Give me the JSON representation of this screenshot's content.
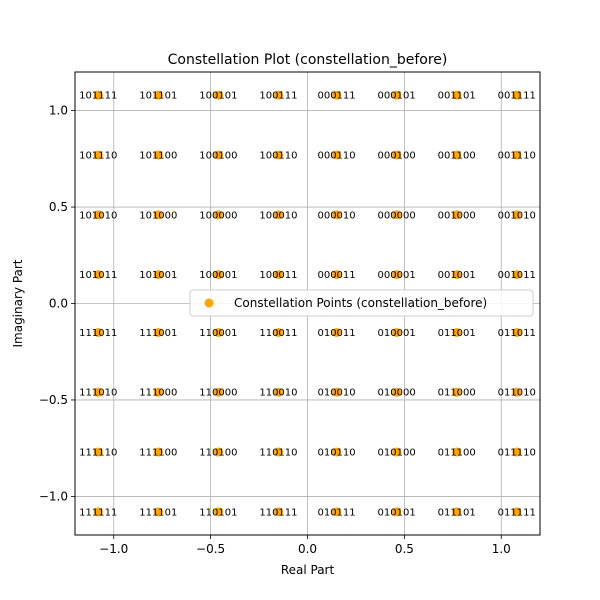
{
  "chart_data": {
    "type": "scatter",
    "title": "Constellation Plot (constellation_before)",
    "xlabel": "Real Part",
    "ylabel": "Imaginary Part",
    "xlim": [
      -1.2,
      1.2
    ],
    "ylim": [
      -1.2,
      1.2
    ],
    "xticks": [
      -1.0,
      -0.5,
      0.0,
      0.5,
      1.0
    ],
    "xtick_labels": [
      "−1.0",
      "−0.5",
      "0.0",
      "0.5",
      "1.0"
    ],
    "yticks": [
      -1.0,
      -0.5,
      0.0,
      0.5,
      1.0
    ],
    "ytick_labels": [
      "−1.0",
      "−0.5",
      "0.0",
      "0.5",
      "1.0"
    ],
    "grid": true,
    "legend_position": "center-right",
    "marker_color": "#ffa500",
    "series": [
      {
        "name": "Constellation Points (constellation_before)",
        "points": [
          {
            "x": -1.08,
            "y": 1.08,
            "label": "101111"
          },
          {
            "x": -0.77,
            "y": 1.08,
            "label": "101101"
          },
          {
            "x": -0.46,
            "y": 1.08,
            "label": "100101"
          },
          {
            "x": -0.15,
            "y": 1.08,
            "label": "100111"
          },
          {
            "x": 0.15,
            "y": 1.08,
            "label": "000111"
          },
          {
            "x": 0.46,
            "y": 1.08,
            "label": "000101"
          },
          {
            "x": 0.77,
            "y": 1.08,
            "label": "001101"
          },
          {
            "x": 1.08,
            "y": 1.08,
            "label": "001111"
          },
          {
            "x": -1.08,
            "y": 0.77,
            "label": "101110"
          },
          {
            "x": -0.77,
            "y": 0.77,
            "label": "101100"
          },
          {
            "x": -0.46,
            "y": 0.77,
            "label": "100100"
          },
          {
            "x": -0.15,
            "y": 0.77,
            "label": "100110"
          },
          {
            "x": 0.15,
            "y": 0.77,
            "label": "000110"
          },
          {
            "x": 0.46,
            "y": 0.77,
            "label": "000100"
          },
          {
            "x": 0.77,
            "y": 0.77,
            "label": "001100"
          },
          {
            "x": 1.08,
            "y": 0.77,
            "label": "001110"
          },
          {
            "x": -1.08,
            "y": 0.46,
            "label": "101010"
          },
          {
            "x": -0.77,
            "y": 0.46,
            "label": "101000"
          },
          {
            "x": -0.46,
            "y": 0.46,
            "label": "100000"
          },
          {
            "x": -0.15,
            "y": 0.46,
            "label": "100010"
          },
          {
            "x": 0.15,
            "y": 0.46,
            "label": "000010"
          },
          {
            "x": 0.46,
            "y": 0.46,
            "label": "000000"
          },
          {
            "x": 0.77,
            "y": 0.46,
            "label": "001000"
          },
          {
            "x": 1.08,
            "y": 0.46,
            "label": "001010"
          },
          {
            "x": -1.08,
            "y": 0.15,
            "label": "101011"
          },
          {
            "x": -0.77,
            "y": 0.15,
            "label": "101001"
          },
          {
            "x": -0.46,
            "y": 0.15,
            "label": "100001"
          },
          {
            "x": -0.15,
            "y": 0.15,
            "label": "100011"
          },
          {
            "x": 0.15,
            "y": 0.15,
            "label": "000011"
          },
          {
            "x": 0.46,
            "y": 0.15,
            "label": "000001"
          },
          {
            "x": 0.77,
            "y": 0.15,
            "label": "001001"
          },
          {
            "x": 1.08,
            "y": 0.15,
            "label": "001011"
          },
          {
            "x": -1.08,
            "y": -0.15,
            "label": "111011"
          },
          {
            "x": -0.77,
            "y": -0.15,
            "label": "111001"
          },
          {
            "x": -0.46,
            "y": -0.15,
            "label": "110001"
          },
          {
            "x": -0.15,
            "y": -0.15,
            "label": "110011"
          },
          {
            "x": 0.15,
            "y": -0.15,
            "label": "010011"
          },
          {
            "x": 0.46,
            "y": -0.15,
            "label": "010001"
          },
          {
            "x": 0.77,
            "y": -0.15,
            "label": "011001"
          },
          {
            "x": 1.08,
            "y": -0.15,
            "label": "011011"
          },
          {
            "x": -1.08,
            "y": -0.46,
            "label": "111010"
          },
          {
            "x": -0.77,
            "y": -0.46,
            "label": "111000"
          },
          {
            "x": -0.46,
            "y": -0.46,
            "label": "110000"
          },
          {
            "x": -0.15,
            "y": -0.46,
            "label": "110010"
          },
          {
            "x": 0.15,
            "y": -0.46,
            "label": "010010"
          },
          {
            "x": 0.46,
            "y": -0.46,
            "label": "010000"
          },
          {
            "x": 0.77,
            "y": -0.46,
            "label": "011000"
          },
          {
            "x": 1.08,
            "y": -0.46,
            "label": "011010"
          },
          {
            "x": -1.08,
            "y": -0.77,
            "label": "111110"
          },
          {
            "x": -0.77,
            "y": -0.77,
            "label": "111100"
          },
          {
            "x": -0.46,
            "y": -0.77,
            "label": "110100"
          },
          {
            "x": -0.15,
            "y": -0.77,
            "label": "110110"
          },
          {
            "x": 0.15,
            "y": -0.77,
            "label": "010110"
          },
          {
            "x": 0.46,
            "y": -0.77,
            "label": "010100"
          },
          {
            "x": 0.77,
            "y": -0.77,
            "label": "011100"
          },
          {
            "x": 1.08,
            "y": -0.77,
            "label": "011110"
          },
          {
            "x": -1.08,
            "y": -1.08,
            "label": "111111"
          },
          {
            "x": -0.77,
            "y": -1.08,
            "label": "111101"
          },
          {
            "x": -0.46,
            "y": -1.08,
            "label": "110101"
          },
          {
            "x": -0.15,
            "y": -1.08,
            "label": "110111"
          },
          {
            "x": 0.15,
            "y": -1.08,
            "label": "010111"
          },
          {
            "x": 0.46,
            "y": -1.08,
            "label": "010101"
          },
          {
            "x": 0.77,
            "y": -1.08,
            "label": "011101"
          },
          {
            "x": 1.08,
            "y": -1.08,
            "label": "011111"
          }
        ]
      }
    ]
  }
}
